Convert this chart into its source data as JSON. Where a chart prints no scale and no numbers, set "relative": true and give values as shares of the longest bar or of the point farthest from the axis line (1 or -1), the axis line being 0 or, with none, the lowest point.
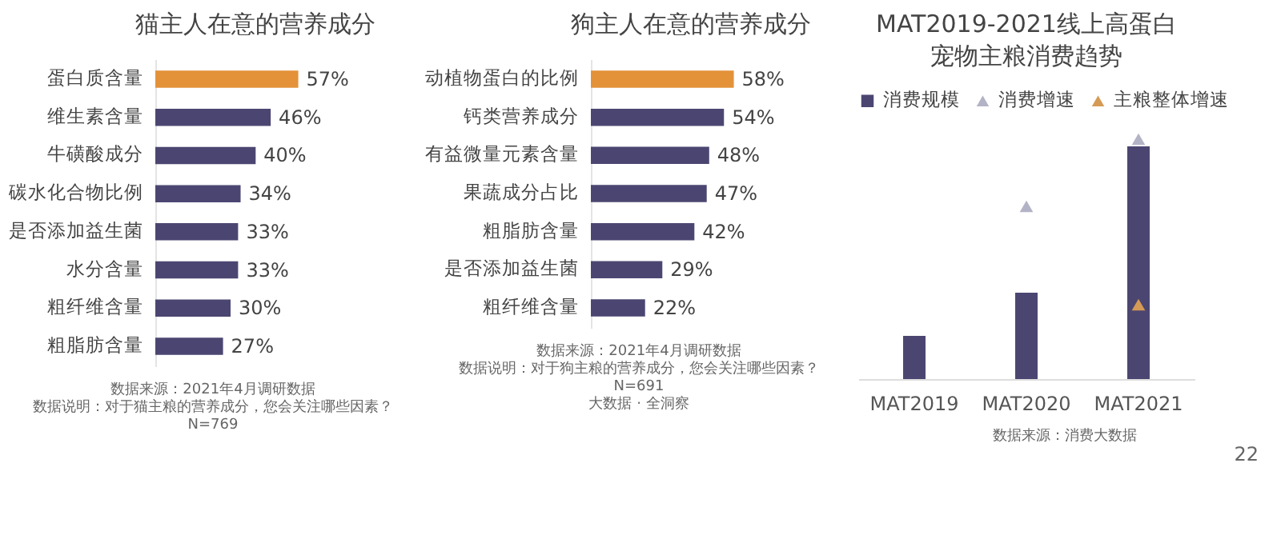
{
  "chart_data": [
    {
      "type": "bar",
      "title": "猫主人在意的营养成分",
      "orientation": "horizontal",
      "tick_labels": "y",
      "categories": [
        "蛋白质含量",
        "维生素含量",
        "牛磺酸成分",
        "碳水化合物比例",
        "是否添加益生菌",
        "水分含量",
        "粗纤维含量",
        "粗脂肪含量"
      ],
      "values": [
        57,
        46,
        40,
        34,
        33,
        33,
        30,
        27
      ],
      "value_labels": [
        "57%",
        "46%",
        "40%",
        "34%",
        "33%",
        "33%",
        "30%",
        "27%"
      ],
      "colors": [
        "#e3923a",
        "#4b4671",
        "#4b4671",
        "#4b4671",
        "#4b4671",
        "#4b4671",
        "#4b4671",
        "#4b4671"
      ],
      "annotations": [
        "数据来源：2021年4月调研数据",
        "数据说明：对于猫主粮的营养成分，您会关注哪些因素？",
        "N=769"
      ]
    },
    {
      "type": "bar",
      "title": "狗主人在意的营养成分",
      "orientation": "horizontal",
      "tick_labels": "y",
      "categories": [
        "动植物蛋白的比例",
        "钙类营养成分",
        "有益微量元素含量",
        "果蔬成分占比",
        "粗脂肪含量",
        "是否添加益生菌",
        "粗纤维含量"
      ],
      "values": [
        58,
        54,
        48,
        47,
        42,
        29,
        22
      ],
      "value_labels": [
        "58%",
        "54%",
        "48%",
        "47%",
        "42%",
        "29%",
        "22%"
      ],
      "colors": [
        "#e3923a",
        "#4b4671",
        "#4b4671",
        "#4b4671",
        "#4b4671",
        "#4b4671",
        "#4b4671"
      ],
      "annotations": [
        "数据来源：2021年4月调研数据",
        "数据说明：对于狗主粮的营养成分，您会关注哪些因素？",
        "N=691",
        "大数据 · 全洞察"
      ]
    },
    {
      "type": "bar",
      "title": "MAT2019-2021线上高蛋白宠物主粮消费趋势",
      "relative": true,
      "legend": "top",
      "marker": "triangle",
      "categories": [
        "MAT2019",
        "MAT2020",
        "MAT2021"
      ],
      "series": [
        {
          "name": "消费规模",
          "type": "bar",
          "color": "#4b4671",
          "values": [
            0.18,
            0.36,
            0.97
          ]
        },
        {
          "name": "消费增速",
          "type": "scatter",
          "color": "#b3b3c6",
          "values": [
            null,
            0.72,
            1
          ]
        },
        {
          "name": "主粮整体增速",
          "type": "scatter",
          "color": "#d59a55",
          "values": [
            null,
            null,
            0.31
          ]
        }
      ],
      "annotations": [
        "数据来源：消费大数据",
        "22"
      ]
    }
  ]
}
